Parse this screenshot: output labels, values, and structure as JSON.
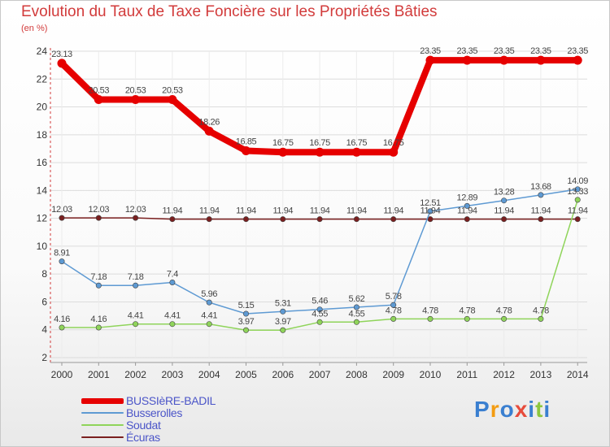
{
  "title": "Evolution du Taux de Taxe Foncière sur les Propriétés Bâties",
  "subtitle": "(en %)",
  "chart_data": {
    "type": "line",
    "title": "Evolution du Taux de Taxe Foncière sur les Propriétés Bâties",
    "ylabel": "(en %)",
    "xlabel": "",
    "categories": [
      "2000",
      "2001",
      "2002",
      "2003",
      "2004",
      "2005",
      "2006",
      "2007",
      "2008",
      "2009",
      "2010",
      "2011",
      "2012",
      "2013",
      "2014"
    ],
    "ylim": [
      2,
      24
    ],
    "yticks": [
      "2",
      "4",
      "6",
      "8",
      "10",
      "12",
      "14",
      "16",
      "18",
      "20",
      "22",
      "24"
    ],
    "grid": true,
    "legend": "bottom-left",
    "series": [
      {
        "name": "BUSSIèRE-BADIL",
        "color": "#e60000",
        "values": [
          23.13,
          20.53,
          20.53,
          20.53,
          18.26,
          16.85,
          16.75,
          16.75,
          16.75,
          16.75,
          23.35,
          23.35,
          23.35,
          23.35,
          23.35
        ],
        "labels": [
          "23.13",
          "20.53",
          "20.53",
          "20.53",
          "18.26",
          "16.85",
          "16.75",
          "16.75",
          "16.75",
          "16.75",
          "23.35",
          "23.35",
          "23.35",
          "23.35",
          "23.35"
        ]
      },
      {
        "name": "Busserolles",
        "color": "#5e9ad3",
        "values": [
          8.91,
          7.18,
          7.18,
          7.4,
          5.96,
          5.15,
          5.31,
          5.46,
          5.62,
          5.78,
          12.51,
          12.89,
          13.28,
          13.68,
          14.09
        ],
        "labels": [
          "8.91",
          "7.18",
          "7.18",
          "7.4",
          "5.96",
          "5.15",
          "5.31",
          "5.46",
          "5.62",
          "5.78",
          "12.51",
          "12.89",
          "13.28",
          "13.68",
          "14.09"
        ]
      },
      {
        "name": "Soudat",
        "color": "#8fd45a",
        "values": [
          4.16,
          4.16,
          4.41,
          4.41,
          4.41,
          3.97,
          3.97,
          4.55,
          4.55,
          4.78,
          4.78,
          4.78,
          4.78,
          4.78,
          13.33
        ],
        "labels": [
          "4.16",
          "4.16",
          "4.41",
          "4.41",
          "4.41",
          "3.97",
          "3.97",
          "4.55",
          "4.55",
          "4.78",
          "4.78",
          "4.78",
          "4.78",
          "4.78",
          "13.33"
        ]
      },
      {
        "name": "Écuras",
        "color": "#7a1f1f",
        "values": [
          12.03,
          12.03,
          12.03,
          11.94,
          11.94,
          11.94,
          11.94,
          11.94,
          11.94,
          11.94,
          11.94,
          11.94,
          11.94,
          11.94,
          11.94
        ],
        "labels": [
          "12.03",
          "12.03",
          "12.03",
          "11.94",
          "11.94",
          "11.94",
          "11.94",
          "11.94",
          "11.94",
          "11.94",
          "11.94",
          "11.94",
          "11.94",
          "11.94",
          "11.94"
        ]
      }
    ]
  },
  "legend": {
    "items": [
      {
        "label": "BUSSIèRE-BADIL",
        "color": "#e60000"
      },
      {
        "label": "Busserolles",
        "color": "#5e9ad3"
      },
      {
        "label": "Soudat",
        "color": "#8fd45a"
      },
      {
        "label": "Écuras",
        "color": "#7a1f1f"
      }
    ]
  },
  "logo": {
    "letters": [
      "P",
      "r",
      "o",
      "x",
      "i",
      "t",
      "i"
    ],
    "colors": [
      "#3a7fd0",
      "#f39c12",
      "#3a7fd0",
      "#e74c3c",
      "#3a7fd0",
      "#8dc63f",
      "#3a7fd0"
    ]
  }
}
